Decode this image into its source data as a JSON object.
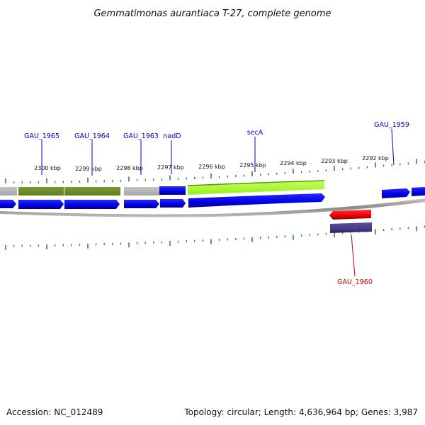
{
  "title": "Gemmatimonas aurantiaca T-27, complete genome",
  "footer": {
    "accession": "Accession: NC_012489",
    "summary": "Topology: circular; Length: 4,636,964 bp; Genes: 3,987"
  },
  "colors": {
    "cds_forward": "#0000ee",
    "cds_reverse": "#ee0000",
    "rna_reverse": "#4a3f8a",
    "operon_olive": "#6b8e23",
    "operon_lime": "#adff2f",
    "operon_grey": "#b4b4b4",
    "backbone": "#999999",
    "tick_green": "#2e8b2e",
    "label_forward": "#0000cc",
    "label_reverse": "#cc0000"
  },
  "scale": {
    "direction": "decreasing-left-to-right",
    "labels": [
      "2300 kbp",
      "2299 kbp",
      "2298 kbp",
      "2297 kbp",
      "2296 kbp",
      "2295 kbp",
      "2294 kbp",
      "2293 kbp",
      "2292 kbp"
    ]
  },
  "gene_labels": [
    {
      "id": "GAU_1965",
      "text": "GAU_1965",
      "strand": "forward"
    },
    {
      "id": "GAU_1964",
      "text": "GAU_1964",
      "strand": "forward"
    },
    {
      "id": "GAU_1963",
      "text": "GAU_1963",
      "strand": "forward"
    },
    {
      "id": "nadD",
      "text": "nadD",
      "strand": "forward"
    },
    {
      "id": "secA",
      "text": "secA",
      "strand": "forward"
    },
    {
      "id": "GAU_1959",
      "text": "GAU_1959",
      "strand": "forward"
    },
    {
      "id": "GAU_1960",
      "text": "GAU_1960",
      "strand": "reverse"
    }
  ]
}
